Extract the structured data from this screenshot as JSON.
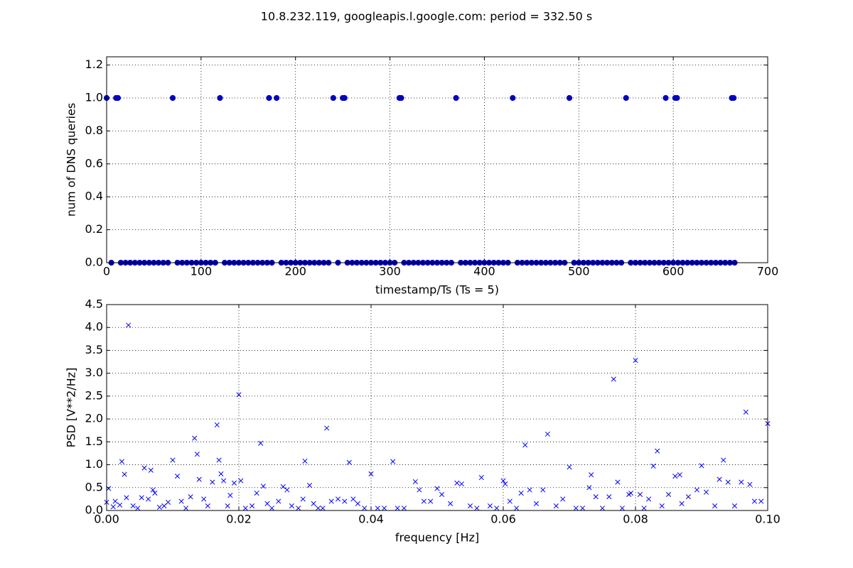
{
  "title": "10.8.232.119, googleapis.l.google.com: period = 332.50 s",
  "chart_data": [
    {
      "type": "scatter",
      "marker": "circle",
      "color": "#0000bf",
      "xlabel": "timestamp/Ts (Ts = 5)",
      "ylabel": "num of DNS queries",
      "xlim": [
        0,
        700
      ],
      "xticks": [
        0,
        100,
        200,
        300,
        400,
        500,
        600,
        700
      ],
      "ylim": [
        0,
        1.25
      ],
      "yticks": [
        {
          "value": 0,
          "label": "0.0"
        },
        0.2,
        0.4,
        0.6,
        0.8,
        {
          "value": 1,
          "label": "1.0"
        },
        1.2
      ],
      "grid": true,
      "x": [
        0,
        5,
        10,
        12,
        15,
        20,
        25,
        30,
        35,
        40,
        45,
        50,
        55,
        60,
        65,
        70,
        75,
        80,
        85,
        90,
        95,
        100,
        105,
        110,
        115,
        120,
        125,
        130,
        135,
        140,
        145,
        150,
        155,
        160,
        165,
        170,
        172,
        175,
        180,
        185,
        190,
        195,
        200,
        205,
        210,
        215,
        220,
        225,
        230,
        235,
        240,
        245,
        250,
        252,
        255,
        260,
        265,
        270,
        275,
        280,
        285,
        290,
        295,
        300,
        305,
        310,
        312,
        315,
        320,
        325,
        330,
        335,
        340,
        345,
        350,
        355,
        360,
        365,
        370,
        375,
        380,
        385,
        390,
        395,
        400,
        405,
        410,
        415,
        420,
        425,
        430,
        435,
        440,
        445,
        450,
        455,
        460,
        465,
        470,
        475,
        480,
        485,
        490,
        495,
        500,
        505,
        510,
        515,
        520,
        525,
        530,
        535,
        540,
        545,
        550,
        555,
        560,
        565,
        570,
        575,
        580,
        585,
        590,
        592,
        595,
        600,
        602,
        604,
        605,
        610,
        615,
        620,
        625,
        630,
        635,
        640,
        645,
        650,
        655,
        660,
        662,
        664,
        665
      ],
      "values": [
        1,
        0,
        1,
        1,
        0,
        0,
        0,
        0,
        0,
        0,
        0,
        0,
        0,
        0,
        0,
        1,
        0,
        0,
        0,
        0,
        0,
        0,
        0,
        0,
        0,
        1,
        0,
        0,
        0,
        0,
        0,
        0,
        0,
        0,
        0,
        0,
        1,
        0,
        1,
        0,
        0,
        0,
        0,
        0,
        0,
        0,
        0,
        0,
        0,
        0,
        1,
        0,
        1,
        1,
        0,
        0,
        0,
        0,
        0,
        0,
        0,
        0,
        0,
        0,
        0,
        1,
        1,
        0,
        0,
        0,
        0,
        0,
        0,
        0,
        0,
        0,
        0,
        0,
        1,
        0,
        0,
        0,
        0,
        0,
        0,
        0,
        0,
        0,
        0,
        0,
        1,
        0,
        0,
        0,
        0,
        0,
        0,
        0,
        0,
        0,
        0,
        0,
        1,
        0,
        0,
        0,
        0,
        0,
        0,
        0,
        0,
        0,
        0,
        0,
        1,
        0,
        0,
        0,
        0,
        0,
        0,
        0,
        0,
        1,
        0,
        0,
        1,
        1,
        0,
        0,
        0,
        0,
        0,
        0,
        0,
        0,
        0,
        0,
        0,
        0,
        1,
        1,
        0
      ]
    },
    {
      "type": "scatter",
      "marker": "cross",
      "color": "#0000ff",
      "xlabel": "frequency [Hz]",
      "ylabel": "PSD [V**2/Hz]",
      "xlim": [
        0,
        0.1
      ],
      "xticks": [
        {
          "value": 0,
          "label": "0.00"
        },
        {
          "value": 0.02,
          "label": "0.02"
        },
        {
          "value": 0.04,
          "label": "0.04"
        },
        {
          "value": 0.06,
          "label": "0.06"
        },
        {
          "value": 0.08,
          "label": "0.08"
        },
        {
          "value": 0.1,
          "label": "0.10"
        }
      ],
      "ylim": [
        0,
        4.5
      ],
      "yticks": [
        {
          "value": 0,
          "label": "0.0"
        },
        0.5,
        {
          "value": 1,
          "label": "1.0"
        },
        1.5,
        {
          "value": 2,
          "label": "2.0"
        },
        2.5,
        {
          "value": 3,
          "label": "3.0"
        },
        3.5,
        {
          "value": 4,
          "label": "4.0"
        },
        4.5
      ],
      "grid": true,
      "x": [
        0,
        0.0003,
        0.001,
        0.0013,
        0.002,
        0.0023,
        0.0027,
        0.003,
        0.0033,
        0.004,
        0.0047,
        0.0053,
        0.0057,
        0.0063,
        0.0067,
        0.007,
        0.0073,
        0.008,
        0.0087,
        0.0093,
        0.01,
        0.0107,
        0.0113,
        0.012,
        0.0127,
        0.0133,
        0.0137,
        0.014,
        0.0147,
        0.0153,
        0.016,
        0.0167,
        0.017,
        0.0173,
        0.0177,
        0.0183,
        0.0187,
        0.0193,
        0.02,
        0.0203,
        0.021,
        0.022,
        0.0227,
        0.0233,
        0.0237,
        0.0243,
        0.025,
        0.026,
        0.0267,
        0.0273,
        0.028,
        0.029,
        0.0297,
        0.03,
        0.0307,
        0.0313,
        0.032,
        0.0327,
        0.0333,
        0.034,
        0.035,
        0.036,
        0.0367,
        0.0373,
        0.038,
        0.039,
        0.04,
        0.041,
        0.042,
        0.0433,
        0.044,
        0.045,
        0.0467,
        0.0473,
        0.048,
        0.049,
        0.05,
        0.0507,
        0.052,
        0.053,
        0.0537,
        0.055,
        0.056,
        0.0567,
        0.058,
        0.059,
        0.06,
        0.0603,
        0.061,
        0.062,
        0.0627,
        0.0633,
        0.064,
        0.065,
        0.066,
        0.0667,
        0.068,
        0.069,
        0.07,
        0.071,
        0.072,
        0.073,
        0.0733,
        0.074,
        0.075,
        0.076,
        0.0767,
        0.0773,
        0.078,
        0.079,
        0.0793,
        0.08,
        0.0807,
        0.0813,
        0.082,
        0.0827,
        0.0833,
        0.084,
        0.085,
        0.086,
        0.0867,
        0.087,
        0.088,
        0.0893,
        0.09,
        0.0907,
        0.092,
        0.0927,
        0.0933,
        0.094,
        0.095,
        0.096,
        0.0967,
        0.0973,
        0.098,
        0.099,
        0.1
      ],
      "values": [
        0.18,
        0.48,
        0.08,
        0.2,
        0.12,
        1.07,
        0.79,
        0.28,
        4.05,
        0.1,
        0.05,
        0.28,
        0.93,
        0.25,
        0.88,
        0.45,
        0.38,
        0.07,
        0.1,
        0.18,
        1.1,
        0.75,
        0.2,
        0.05,
        0.3,
        1.58,
        1.23,
        0.68,
        0.25,
        0.1,
        0.62,
        1.87,
        1.1,
        0.8,
        0.65,
        0.1,
        0.33,
        0.6,
        2.53,
        0.65,
        0.05,
        0.1,
        0.38,
        1.47,
        0.53,
        0.15,
        0.05,
        0.2,
        0.52,
        0.45,
        0.1,
        0.05,
        0.25,
        1.08,
        0.55,
        0.15,
        0.05,
        0.05,
        1.8,
        0.2,
        0.25,
        0.2,
        1.05,
        0.25,
        0.15,
        0.05,
        0.8,
        0.05,
        0.05,
        1.07,
        0.05,
        0.05,
        0.63,
        0.45,
        0.2,
        0.2,
        0.48,
        0.35,
        0.15,
        0.6,
        0.58,
        0.1,
        0.05,
        0.72,
        0.1,
        0.05,
        0.65,
        0.58,
        0.2,
        0.05,
        0.38,
        1.43,
        0.45,
        0.15,
        0.45,
        1.67,
        0.1,
        0.25,
        0.95,
        0.05,
        0.05,
        0.5,
        0.78,
        0.3,
        0.05,
        0.3,
        2.87,
        0.62,
        0.05,
        0.35,
        0.38,
        3.28,
        0.35,
        0.05,
        0.25,
        0.97,
        1.3,
        0.1,
        0.35,
        0.75,
        0.78,
        0.15,
        0.3,
        0.45,
        0.98,
        0.4,
        0.1,
        0.68,
        1.1,
        0.62,
        0.1,
        0.62,
        2.15,
        0.57,
        0.2,
        0.2,
        1.9
      ]
    }
  ]
}
